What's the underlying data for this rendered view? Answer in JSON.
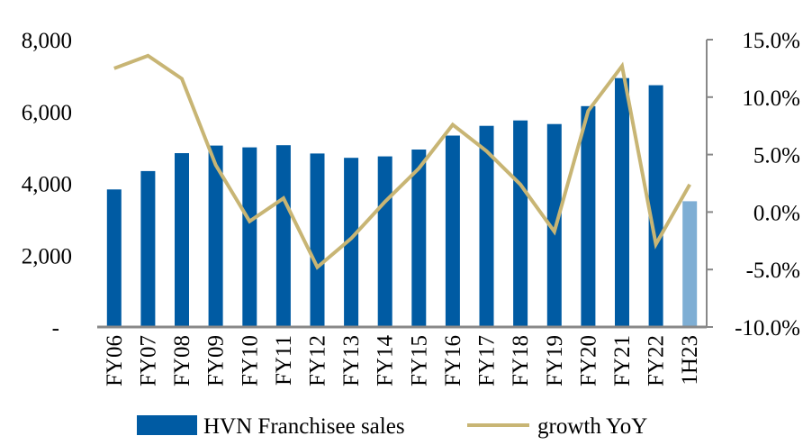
{
  "chart_data": {
    "type": "bar+line",
    "title": "",
    "categories": [
      "FY06",
      "FY07",
      "FY08",
      "FY09",
      "FY10",
      "FY11",
      "FY12",
      "FY13",
      "FY14",
      "FY15",
      "FY16",
      "FY17",
      "FY18",
      "FY19",
      "FY20",
      "FY21",
      "FY22",
      "1H23"
    ],
    "series": [
      {
        "name": "HVN Franchisee sales",
        "type": "bar",
        "axis": "left",
        "color": "#005BA3",
        "highlight_color": "#7EAED4",
        "highlight_index": 17,
        "values": [
          3830,
          4340,
          4840,
          5050,
          5000,
          5060,
          4830,
          4710,
          4750,
          4940,
          5330,
          5600,
          5750,
          5650,
          6150,
          6930,
          6730,
          3500
        ]
      },
      {
        "name": "growth YoY",
        "type": "line",
        "axis": "right",
        "color": "#C8B574",
        "values": [
          12.5,
          13.6,
          11.6,
          4.1,
          -0.8,
          1.2,
          -4.8,
          -2.3,
          0.9,
          3.8,
          7.6,
          5.3,
          2.4,
          -1.7,
          8.8,
          12.7,
          -2.8,
          2.4
        ]
      }
    ],
    "left_axis": {
      "min": 0,
      "max": 8000,
      "ticks": [
        0,
        2000,
        4000,
        6000,
        8000
      ],
      "tick_labels": [
        "-",
        "2,000",
        "4,000",
        "6,000",
        "8,000"
      ]
    },
    "right_axis": {
      "min": -10,
      "max": 15,
      "ticks": [
        -10,
        -5,
        0,
        5,
        10,
        15
      ],
      "tick_labels": [
        "-10.0%",
        "-5.0%",
        "0.0%",
        "5.0%",
        "10.0%",
        "15.0%"
      ]
    },
    "legend": {
      "position": "bottom",
      "entries": [
        {
          "label": "HVN Franchisee sales",
          "marker": "bar",
          "color": "#005BA3"
        },
        {
          "label": "growth YoY",
          "marker": "line",
          "color": "#C8B574"
        }
      ]
    },
    "axis_color": "#888888"
  }
}
